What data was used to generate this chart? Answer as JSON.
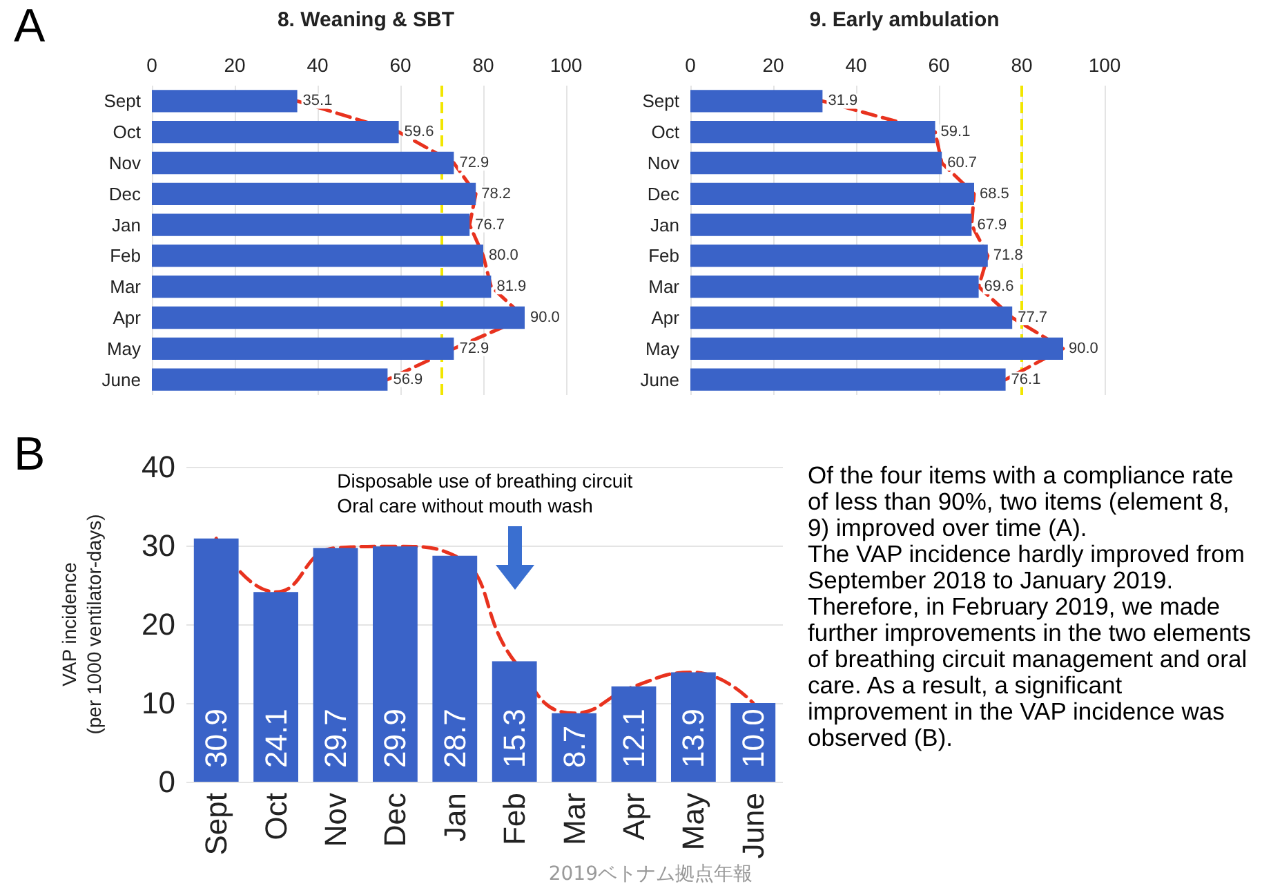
{
  "chart_data": [
    {
      "type": "bar",
      "title": "8. Weaning & SBT",
      "orientation": "horizontal",
      "categories": [
        "Sept",
        "Oct",
        "Nov",
        "Dec",
        "Jan",
        "Feb",
        "Mar",
        "Apr",
        "May",
        "June"
      ],
      "series": [
        {
          "color": "#3a63c8",
          "values": [
            35.1,
            59.6,
            72.9,
            78.2,
            76.7,
            80.0,
            81.9,
            90.0,
            72.9,
            56.9
          ],
          "value_labels": [
            "35.1",
            "59.6",
            "72.9",
            "78.2",
            "76.7",
            "80.0",
            "81.9",
            "90.0",
            "72.9",
            "56.9"
          ]
        },
        {
          "type": "line",
          "color": "#e8321e",
          "line_style": "dashed",
          "marker": "none",
          "values": [
            35.1,
            59.6,
            72.9,
            78.2,
            76.7,
            80.0,
            81.9,
            90.0,
            72.9,
            56.9
          ]
        }
      ],
      "xlim": [
        0,
        100
      ],
      "xticks": [
        0,
        20,
        40,
        60,
        80,
        100
      ],
      "grid": "x",
      "ref_lines": [
        {
          "axis": "x",
          "value": 70,
          "color": "#f2e600",
          "line_style": "dashed"
        }
      ],
      "annotations": [
        "A"
      ]
    },
    {
      "type": "bar",
      "title": "9. Early ambulation",
      "orientation": "horizontal",
      "categories": [
        "Sept",
        "Oct",
        "Nov",
        "Dec",
        "Jan",
        "Feb",
        "Mar",
        "Apr",
        "May",
        "June"
      ],
      "series": [
        {
          "color": "#3a63c8",
          "values": [
            31.9,
            59.1,
            60.7,
            68.5,
            67.9,
            71.8,
            69.6,
            77.7,
            90.0,
            76.1
          ],
          "value_labels": [
            "31.9",
            "59.1",
            "60.7",
            "68.5",
            "67.9",
            "71.8",
            "69.6",
            "77.7",
            "90.0",
            "76.1"
          ]
        },
        {
          "type": "line",
          "color": "#e8321e",
          "line_style": "dashed",
          "marker": "none",
          "values": [
            31.9,
            59.1,
            60.7,
            68.5,
            67.9,
            71.8,
            69.6,
            77.7,
            90.0,
            76.1
          ]
        }
      ],
      "xlim": [
        0,
        100
      ],
      "xticks": [
        0,
        20,
        40,
        60,
        80,
        100
      ],
      "grid": "x",
      "ref_lines": [
        {
          "axis": "x",
          "value": 80,
          "color": "#f2e600",
          "line_style": "dashed"
        }
      ]
    },
    {
      "type": "bar",
      "ylabel": "VAP incidence\n(per 1000 ventilator-days)",
      "categories": [
        "Sept",
        "Oct",
        "Nov",
        "Dec",
        "Jan",
        "Feb",
        "Mar",
        "Apr",
        "May",
        "June"
      ],
      "series": [
        {
          "color": "#3a63c8",
          "values": [
            30.9,
            24.1,
            29.7,
            29.9,
            28.7,
            15.3,
            8.7,
            12.1,
            13.9,
            10.0
          ],
          "value_labels": [
            "30.9",
            "24.1",
            "29.7",
            "29.9",
            "28.7",
            "15.3",
            "8.7",
            "12.1",
            "13.9",
            "10.0"
          ]
        },
        {
          "type": "line",
          "color": "#e8321e",
          "line_style": "dashed",
          "marker": "none",
          "values": [
            30.9,
            24.1,
            29.7,
            29.9,
            28.7,
            15.3,
            8.7,
            12.1,
            13.9,
            10.0
          ]
        }
      ],
      "ylim": [
        0,
        40
      ],
      "yticks": [
        0,
        10,
        20,
        30,
        40
      ],
      "grid": "y",
      "annotations": [
        "B",
        "Disposable use of breathing circuit\nOral care without mouth wash",
        "2019ベトナム拠点年報"
      ]
    },
    {
      "type": "other",
      "annotations": [
        "Of the four items with a compliance rate of less than 90%, two items (element 8, 9) improved over time (A).",
        "The VAP incidence hardly improved from September 2018 to January 2019. Therefore, in February 2019, we made further improvements in the two elements of breathing circuit management and oral care. As a result, a significant improvement in the VAP incidence was observed (B)."
      ]
    }
  ]
}
